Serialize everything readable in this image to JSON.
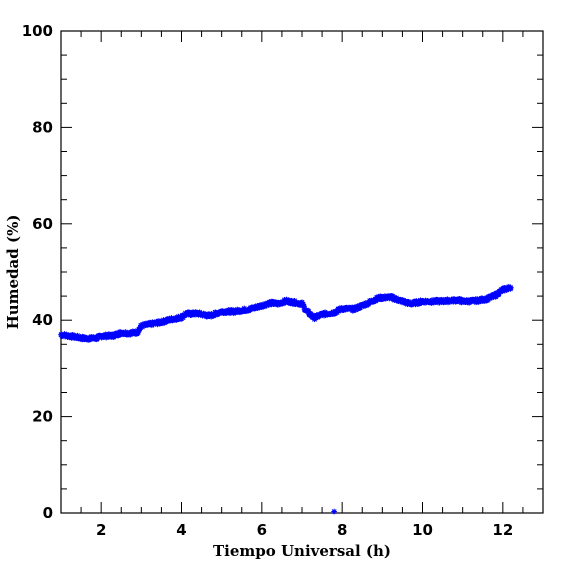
{
  "chart_data": {
    "type": "scatter",
    "xlabel": "Tiempo Universal (h)",
    "ylabel": "Humedad (%)",
    "xlim": [
      1,
      13
    ],
    "ylim": [
      0,
      100
    ],
    "xticks": [
      "2",
      "4",
      "6",
      "8",
      "10",
      "12"
    ],
    "yticks": [
      "0",
      "20",
      "40",
      "60",
      "80",
      "100"
    ],
    "marker_color": "#0000ff",
    "anchors": [
      [
        1.0,
        37.0
      ],
      [
        1.3,
        36.6
      ],
      [
        1.6,
        36.2
      ],
      [
        1.9,
        36.3
      ],
      [
        2.0,
        36.7
      ],
      [
        2.3,
        36.8
      ],
      [
        2.5,
        37.4
      ],
      [
        2.7,
        37.3
      ],
      [
        2.9,
        37.5
      ],
      [
        3.0,
        38.8
      ],
      [
        3.3,
        39.3
      ],
      [
        3.5,
        39.6
      ],
      [
        3.7,
        40.1
      ],
      [
        4.0,
        40.6
      ],
      [
        4.1,
        41.3
      ],
      [
        4.4,
        41.4
      ],
      [
        4.7,
        40.9
      ],
      [
        5.0,
        41.8
      ],
      [
        5.3,
        41.8
      ],
      [
        5.7,
        42.3
      ],
      [
        6.0,
        43.0
      ],
      [
        6.2,
        43.6
      ],
      [
        6.4,
        43.4
      ],
      [
        6.6,
        44.0
      ],
      [
        6.8,
        43.7
      ],
      [
        7.0,
        43.4
      ],
      [
        7.1,
        42.0
      ],
      [
        7.3,
        40.5
      ],
      [
        7.5,
        41.2
      ],
      [
        7.8,
        41.6
      ],
      [
        8.0,
        42.4
      ],
      [
        8.3,
        42.3
      ],
      [
        8.6,
        43.4
      ],
      [
        8.9,
        44.6
      ],
      [
        9.2,
        44.8
      ],
      [
        9.4,
        44.2
      ],
      [
        9.7,
        43.4
      ],
      [
        10.0,
        43.9
      ],
      [
        10.3,
        43.9
      ],
      [
        10.6,
        44.0
      ],
      [
        10.9,
        44.2
      ],
      [
        11.0,
        43.9
      ],
      [
        11.3,
        44.0
      ],
      [
        11.6,
        44.4
      ],
      [
        11.8,
        45.1
      ],
      [
        12.0,
        46.3
      ],
      [
        12.2,
        46.8
      ]
    ],
    "outlier": [
      7.8,
      0.3
    ]
  }
}
